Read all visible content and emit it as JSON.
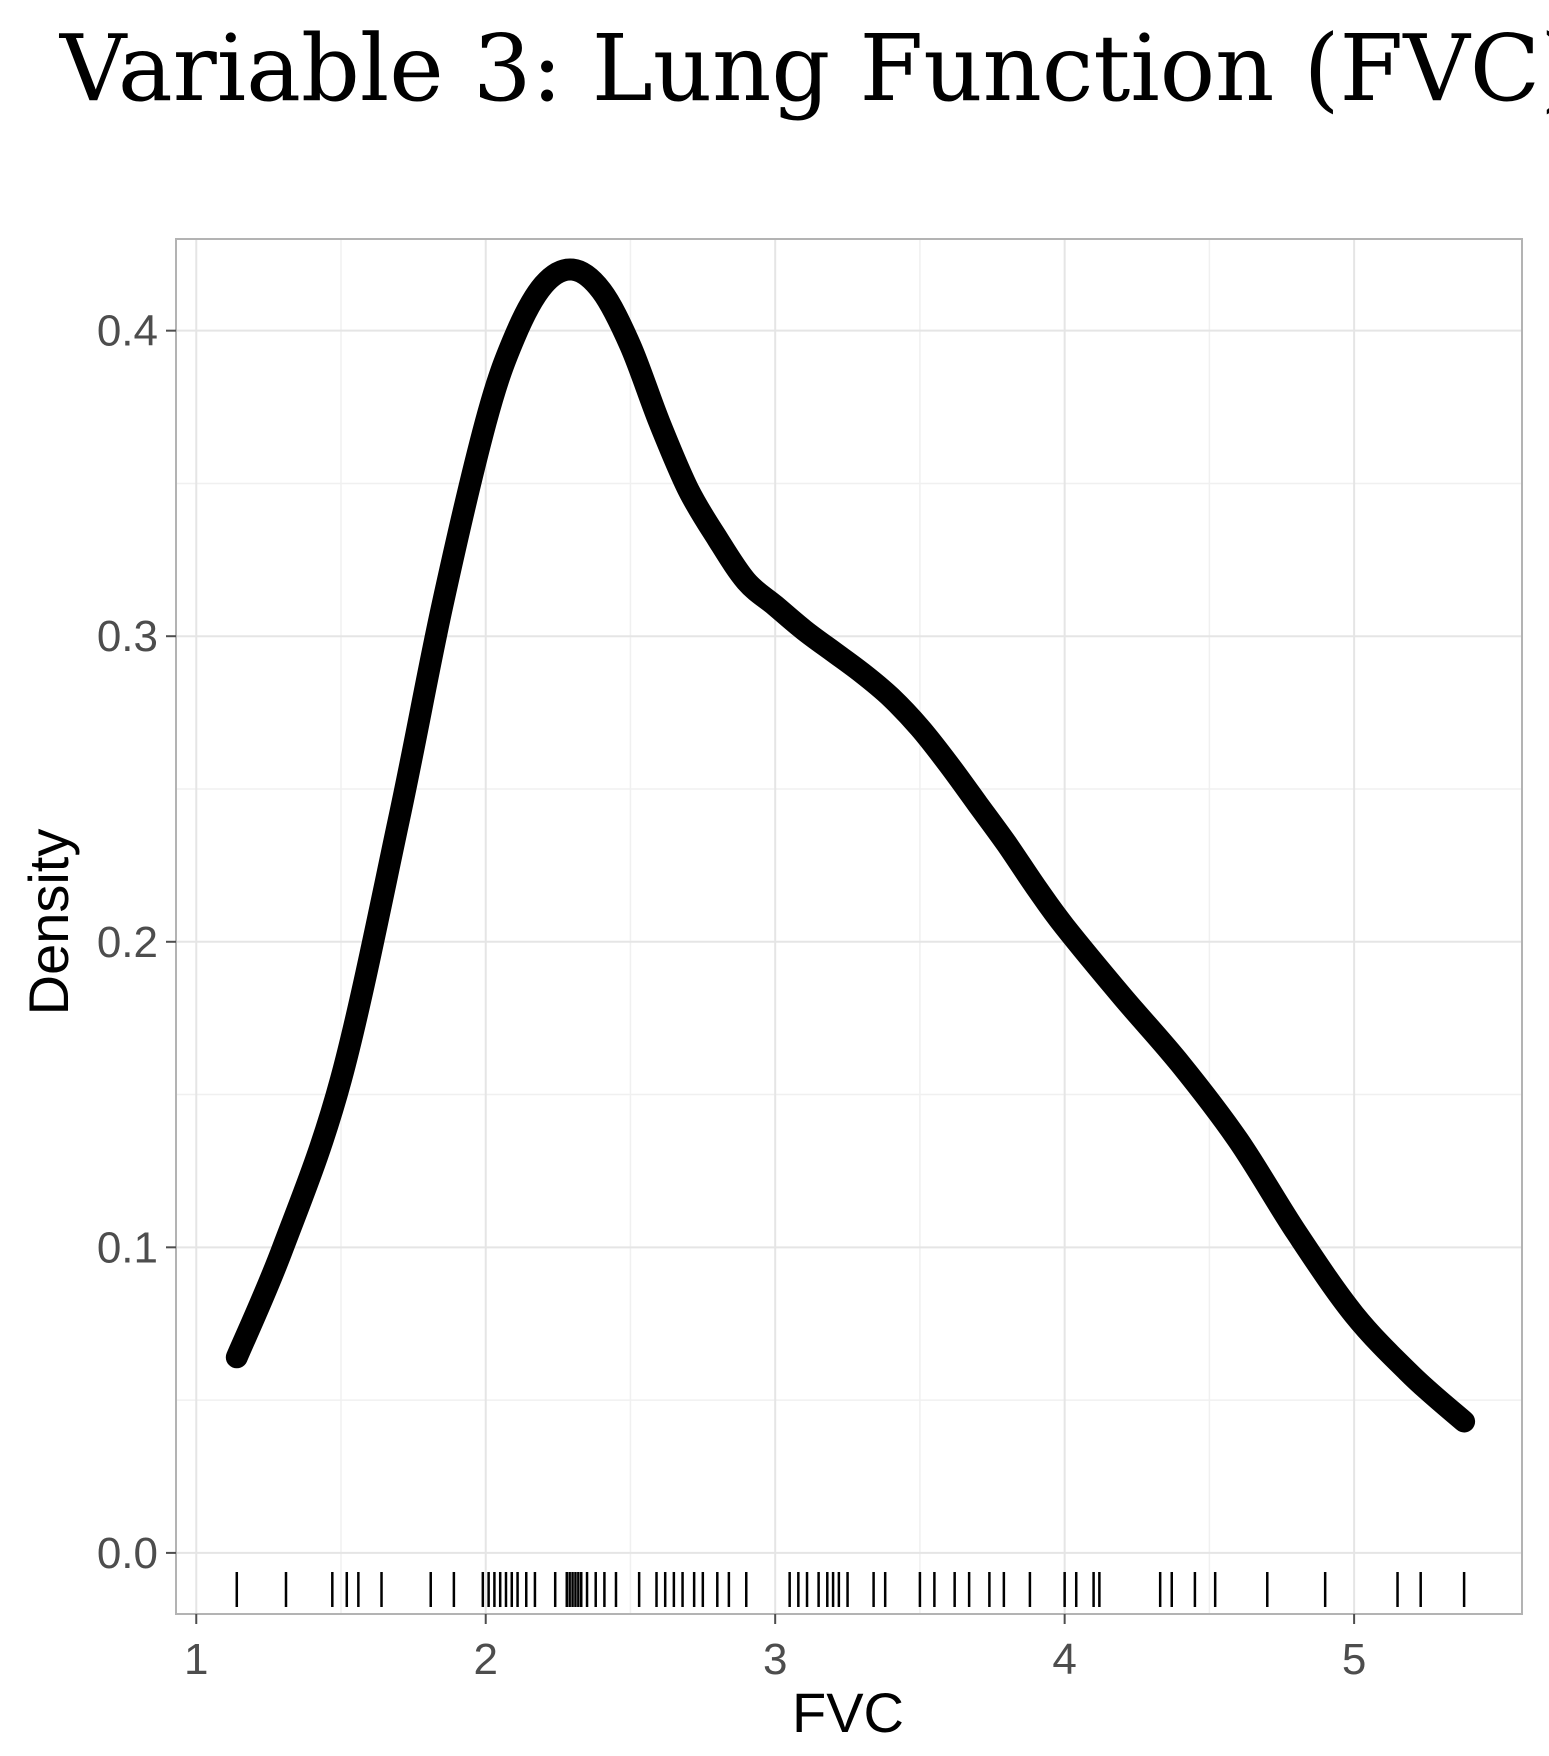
{
  "chart_data": {
    "type": "line",
    "title": "Variable 3: Lung Function (FVC)",
    "xlabel": "FVC",
    "ylabel": "Density",
    "xlim": [
      0.93,
      5.58
    ],
    "ylim": [
      -0.02,
      0.43
    ],
    "x_ticks": [
      1,
      2,
      3,
      4,
      5
    ],
    "y_ticks": [
      0.0,
      0.1,
      0.2,
      0.3,
      0.4
    ],
    "x_tick_labels": [
      "1",
      "2",
      "3",
      "4",
      "5"
    ],
    "y_tick_labels": [
      "0.0",
      "0.1",
      "0.2",
      "0.3",
      "0.4"
    ],
    "grid": true,
    "legend": "none",
    "series": [
      {
        "x": [
          1.14,
          1.3,
          1.5,
          1.7,
          1.85,
          2.0,
          2.1,
          2.2,
          2.3,
          2.4,
          2.5,
          2.6,
          2.7,
          2.8,
          2.9,
          3.0,
          3.1,
          3.2,
          3.3,
          3.4,
          3.5,
          3.6,
          3.7,
          3.8,
          3.9,
          4.0,
          4.2,
          4.4,
          4.6,
          4.8,
          5.0,
          5.2,
          5.38
        ],
        "y": [
          0.064,
          0.1,
          0.155,
          0.24,
          0.31,
          0.37,
          0.398,
          0.415,
          0.42,
          0.413,
          0.395,
          0.37,
          0.348,
          0.332,
          0.318,
          0.31,
          0.302,
          0.295,
          0.288,
          0.28,
          0.27,
          0.258,
          0.245,
          0.232,
          0.218,
          0.205,
          0.182,
          0.16,
          0.135,
          0.105,
          0.078,
          0.058,
          0.043
        ]
      }
    ],
    "rug": [
      1.14,
      1.31,
      1.47,
      1.52,
      1.56,
      1.64,
      1.81,
      1.89,
      1.99,
      2.01,
      2.03,
      2.05,
      2.07,
      2.09,
      2.11,
      2.14,
      2.17,
      2.24,
      2.28,
      2.29,
      2.3,
      2.31,
      2.32,
      2.33,
      2.35,
      2.38,
      2.41,
      2.45,
      2.53,
      2.59,
      2.62,
      2.65,
      2.68,
      2.72,
      2.75,
      2.8,
      2.84,
      2.9,
      3.05,
      3.08,
      3.11,
      3.15,
      3.18,
      3.2,
      3.22,
      3.25,
      3.34,
      3.38,
      3.5,
      3.55,
      3.62,
      3.67,
      3.74,
      3.79,
      3.88,
      4.0,
      4.04,
      4.1,
      4.12,
      4.33,
      4.37,
      4.45,
      4.52,
      4.7,
      4.9,
      5.15,
      5.23,
      5.38
    ]
  }
}
